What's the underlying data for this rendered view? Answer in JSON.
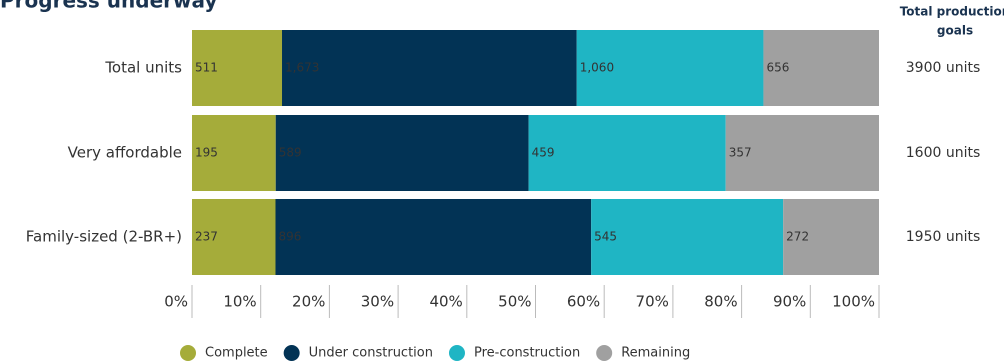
{
  "chart_data": {
    "type": "stacked-bar-percent",
    "title": "Progress underway",
    "goals_header": [
      "Total production",
      "goals"
    ],
    "categories": [
      "Total units",
      "Very affordable",
      "Family-sized (2-BR+)"
    ],
    "goals": [
      "3900 units",
      "1600 units",
      "1950 units"
    ],
    "series": [
      {
        "name": "Complete",
        "color": "#a5ac3a",
        "label_color": "#222222",
        "values": [
          511,
          195,
          237
        ]
      },
      {
        "name": "Under construction",
        "color": "#023355",
        "label_color": "#ffffff",
        "values": [
          1673,
          589,
          896
        ],
        "value_labels": [
          "1,673",
          "589",
          "896"
        ]
      },
      {
        "name": "Pre-construction",
        "color": "#1fb5c4",
        "label_color": "#222222",
        "values": [
          1060,
          459,
          545
        ],
        "value_labels": [
          "1,060",
          "459",
          "545"
        ]
      },
      {
        "name": "Remaining",
        "color": "#a0a0a0",
        "label_color": "#222222",
        "values": [
          656,
          357,
          272
        ]
      }
    ],
    "xlim": [
      0,
      100
    ],
    "xticks": [
      {
        "value": 0,
        "label": "0%"
      },
      {
        "value": 10,
        "label": "10%"
      },
      {
        "value": 20,
        "label": "20%"
      },
      {
        "value": 30,
        "label": "30%"
      },
      {
        "value": 40,
        "label": "40%"
      },
      {
        "value": 50,
        "label": "50%"
      },
      {
        "value": 60,
        "label": "60%"
      },
      {
        "value": 70,
        "label": "70%"
      },
      {
        "value": 80,
        "label": "80%"
      },
      {
        "value": 90,
        "label": "90%"
      },
      {
        "value": 100,
        "label": "100%"
      }
    ]
  }
}
